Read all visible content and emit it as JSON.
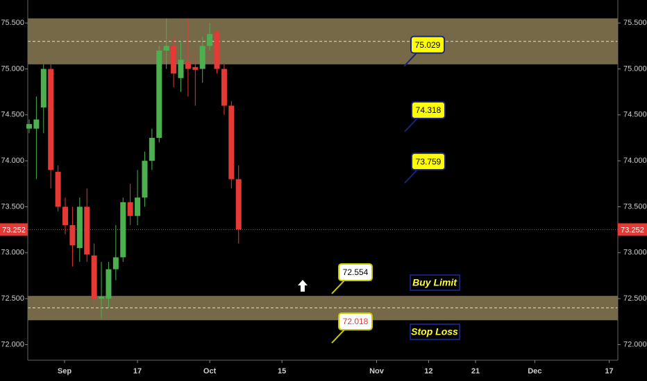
{
  "chart_data": {
    "type": "candlestick",
    "open": [
      74.35,
      74.35,
      74.58,
      75.0,
      73.88,
      73.5,
      73.3,
      73.05,
      73.5,
      72.97,
      72.5,
      72.5,
      72.82,
      72.95,
      73.55,
      73.4,
      73.6,
      74.0,
      74.25,
      75.2,
      75.25,
      74.9,
      75.08,
      75.02,
      75.0,
      75.25,
      75.4,
      75.0,
      74.6,
      73.8
    ],
    "high": [
      74.45,
      74.7,
      75.05,
      75.05,
      73.95,
      73.6,
      73.5,
      73.6,
      73.7,
      73.1,
      72.9,
      72.9,
      73.3,
      73.6,
      73.75,
      73.9,
      74.1,
      74.35,
      75.25,
      75.55,
      75.35,
      75.3,
      75.55,
      75.2,
      75.35,
      75.5,
      75.42,
      75.05,
      74.65,
      73.95
    ],
    "low": [
      74.3,
      73.8,
      74.3,
      73.7,
      73.45,
      73.2,
      72.85,
      72.9,
      72.9,
      72.4,
      72.28,
      72.4,
      72.7,
      72.9,
      73.3,
      73.3,
      73.5,
      73.9,
      74.2,
      75.0,
      74.8,
      74.75,
      74.7,
      74.6,
      74.85,
      75.2,
      74.95,
      74.5,
      73.7,
      73.1
    ],
    "close": [
      74.4,
      74.45,
      75.0,
      73.9,
      73.5,
      73.3,
      73.08,
      73.5,
      72.98,
      72.5,
      72.52,
      72.82,
      72.95,
      73.55,
      73.4,
      73.6,
      74.0,
      74.25,
      75.2,
      75.25,
      74.95,
      75.1,
      75.0,
      74.99,
      75.25,
      75.38,
      75.0,
      74.6,
      73.8,
      73.252
    ],
    "up_color": "#4caf50",
    "down_color": "#e53935",
    "ylim": [
      71.83,
      75.75
    ],
    "yticks": [
      {
        "value": 72,
        "label": "72.000"
      },
      {
        "value": 72.5,
        "label": "72.500"
      },
      {
        "value": 73,
        "label": "73.000"
      },
      {
        "value": 73.5,
        "label": "73.500"
      },
      {
        "value": 74,
        "label": "74.000"
      },
      {
        "value": 74.5,
        "label": "74.500"
      },
      {
        "value": 75,
        "label": "75.000"
      },
      {
        "value": 75.5,
        "label": "75.500"
      }
    ],
    "xlim": [
      -0.19,
      81.5
    ],
    "xticks": [
      {
        "value": 4.9,
        "label": "Sep"
      },
      {
        "value": 15,
        "label": "17"
      },
      {
        "value": 25,
        "label": "Oct"
      },
      {
        "value": 35,
        "label": "15"
      },
      {
        "value": 48.1,
        "label": "Nov"
      },
      {
        "value": 55.3,
        "label": "12"
      },
      {
        "value": 61.8,
        "label": "21"
      },
      {
        "value": 70,
        "label": "Dec"
      },
      {
        "value": 80.3,
        "label": "17"
      }
    ],
    "last_price": 73.252,
    "last_price_color": "#e53935",
    "zones": [
      {
        "top": 75.55,
        "bottom": 75.05,
        "mid": 75.3
      },
      {
        "top": 72.53,
        "bottom": 72.265,
        "mid": 72.4
      }
    ],
    "zone_color": "#8a7b55",
    "annotations": [
      {
        "value": 75.029,
        "fill": "#ffff00",
        "text_color": "#000000",
        "border": "#1a237e"
      },
      {
        "value": 74.318,
        "fill": "#ffff00",
        "text_color": "#000000",
        "border": "#1a237e"
      },
      {
        "value": 73.759,
        "fill": "#ffff00",
        "text_color": "#000000",
        "border": "#1a237e"
      },
      {
        "value": 72.554,
        "fill": "#ffffff",
        "text_color": "#000000",
        "border": "#c8c800"
      },
      {
        "value": 72.018,
        "fill": "#ffffff",
        "text_color": "#e53935",
        "border": "#c8c800"
      }
    ],
    "zone_labels": [
      "Buy Limit",
      "Stop Loss"
    ]
  }
}
